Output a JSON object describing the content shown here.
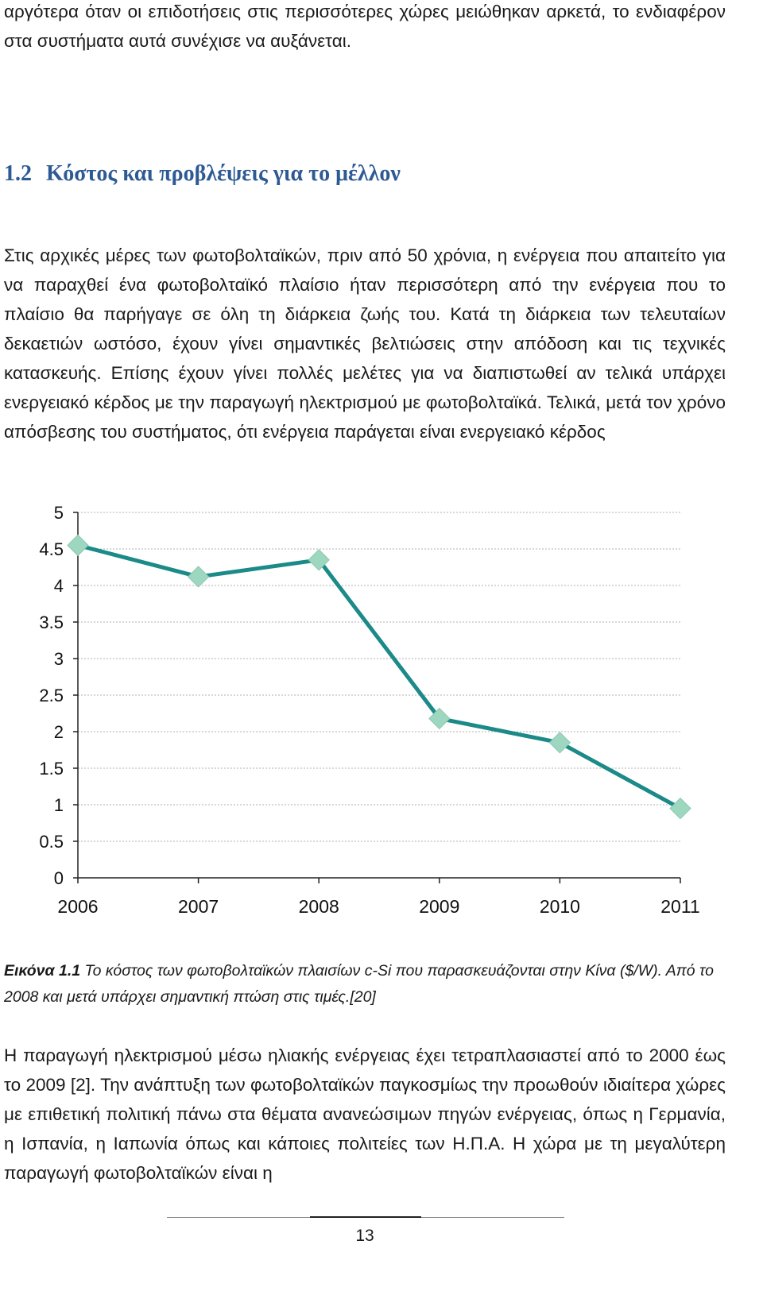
{
  "intro_tail": "αργότερα όταν οι επιδοτήσεις στις περισσότερες χώρες μειώθηκαν αρκετά, το ενδιαφέρον στα συστήματα αυτά συνέχισε να αυξάνεται.",
  "section": {
    "number": "1.2",
    "title": "Κόστος και προβλέψεις για το μέλλον"
  },
  "paragraph1": "Στις αρχικές μέρες των φωτοβολταϊκών, πριν από 50 χρόνια, η ενέργεια που απαιτείτο για να παραχθεί ένα φωτοβολταϊκό πλαίσιο ήταν περισσότερη από την ενέργεια που το πλαίσιο θα παρήγαγε σε όλη τη διάρκεια ζωής του. Κατά τη διάρκεια των τελευταίων δεκαετιών ωστόσο, έχουν γίνει σημαντικές βελτιώσεις στην απόδοση και τις τεχνικές κατασκευής. Επίσης έχουν γίνει πολλές μελέτες για να διαπιστωθεί αν τελικά υπάρχει ενεργειακό κέρδος με την παραγωγή ηλεκτρισμού με φωτοβολταϊκά. Τελικά, μετά τον χρόνο απόσβεσης του συστήματος, ότι ενέργεια παράγεται είναι ενεργειακό κέρδος",
  "chart_data": {
    "type": "line",
    "title": "",
    "xlabel": "",
    "ylabel": "",
    "x": [
      "2006",
      "2007",
      "2008",
      "2009",
      "2010",
      "2011"
    ],
    "series": [
      {
        "values": [
          4.55,
          4.12,
          4.35,
          2.18,
          1.85,
          0.95
        ]
      }
    ],
    "yticks": [
      "0",
      "0.5",
      "1",
      "1.5",
      "2",
      "2.5",
      "3",
      "3.5",
      "4",
      "4.5",
      "5"
    ],
    "ylim": [
      0,
      5
    ],
    "grid": true,
    "line_color": "#1b8a88",
    "marker_color": "#9dd7bf",
    "grid_color": "#b0b0b0"
  },
  "caption": {
    "label": "Εικόνα 1.1",
    "text": " Το κόστος των φωτοβολταϊκών πλαισίων c-Si που παρασκευάζονται στην Κίνα ($/W). Από το 2008 και μετά υπάρχει σημαντική πτώση στις τιμές.[20]"
  },
  "paragraph2": "Η παραγωγή ηλεκτρισμού μέσω ηλιακής ενέργειας έχει τετραπλασιαστεί από το 2000 έως το 2009 [2]. Την ανάπτυξη των φωτοβολταϊκών παγκοσμίως την προωθούν ιδιαίτερα χώρες με επιθετική πολιτική πάνω στα θέματα ανανεώσιμων πηγών ενέργειας, όπως η Γερμανία, η Ισπανία, η Ιαπωνία όπως και κάποιες πολιτείες των Η.Π.Α. Η χώρα με τη μεγαλύτερη παραγωγή φωτοβολταϊκών είναι η",
  "page_number": "13"
}
